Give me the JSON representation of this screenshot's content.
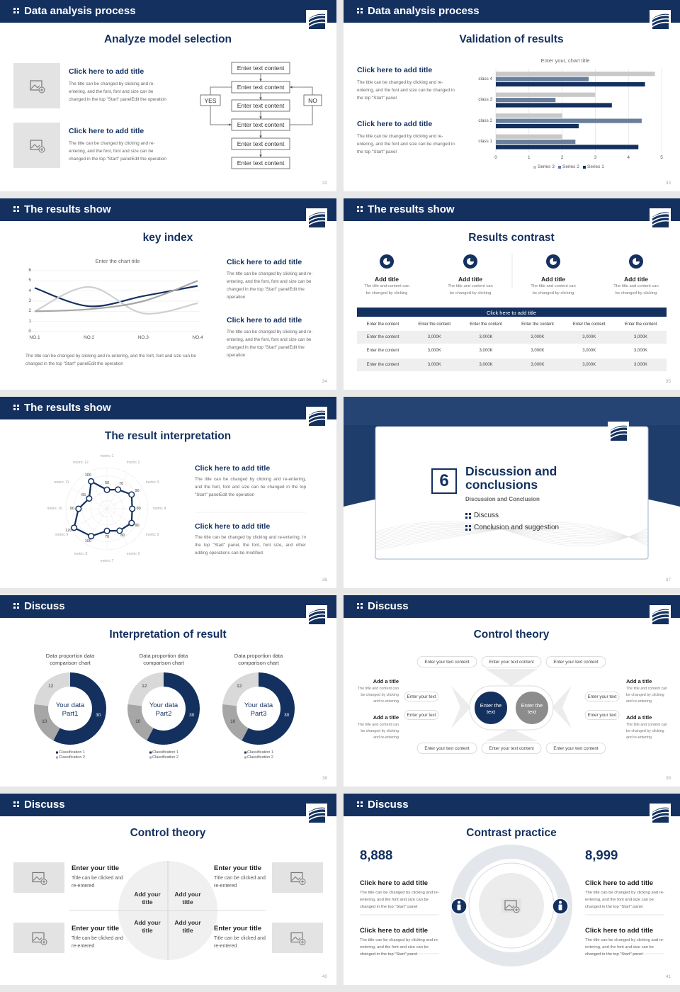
{
  "slides": [
    {
      "header": "Data analysis process",
      "title": "Analyze model selection",
      "page": "32",
      "items": [
        {
          "title": "Click here to add title",
          "text": "The title can be changed by clicking and re-entering, and the font, font and size can be changed in the top \"Start\" panelEdit the operation"
        },
        {
          "title": "Click here to add title",
          "text": "The title can be changed by clicking and re-entering, and the font, font and size can be changed in the top \"Start\" panelEdit the operation"
        }
      ],
      "flow": {
        "boxes": [
          "Enter text content",
          "Enter text content",
          "Enter text content",
          "Enter text content",
          "Enter text content",
          "Enter text content"
        ],
        "yes": "YES",
        "no": "NO"
      }
    },
    {
      "header": "Data analysis process",
      "title": "Validation of results",
      "page": "33",
      "items": [
        {
          "title": "Click here to add title",
          "text": "The title can be changed by clicking and re-entering, and the font and size can be changed in the top \"Start\" panel"
        },
        {
          "title": "Click here to add title",
          "text": "The title can be changed by clicking and re-entering, and the font and size can be changed in the top \"Start\" panel"
        }
      ],
      "chart_data": {
        "type": "bar",
        "title": "Enter your, chart title",
        "categories": [
          "class 1",
          "class 2",
          "class 3",
          "class 4"
        ],
        "series": [
          {
            "name": "Series 1",
            "color": "#13305f",
            "values": [
              4.3,
              2.5,
              3.5,
              4.5
            ]
          },
          {
            "name": "Series 2",
            "color": "#6a7f9c",
            "values": [
              2.4,
              4.4,
              1.8,
              2.8
            ]
          },
          {
            "name": "Series 3",
            "color": "#c8c8c8",
            "values": [
              2,
              2,
              3,
              4.8
            ]
          }
        ],
        "xlim": [
          0,
          5
        ],
        "xticks": [
          0,
          1,
          2,
          3,
          4,
          5
        ],
        "grid": true
      }
    },
    {
      "header": "The results show",
      "title": "key index",
      "page": "34",
      "chart_data": {
        "type": "line",
        "title": "Enter the chart title",
        "categories": [
          "NO.1",
          "NO.2",
          "NO.3",
          "NO.4"
        ],
        "series": [
          {
            "color": "#13305f",
            "values": [
              4.3,
              2.5,
              3.5,
              4.5
            ]
          },
          {
            "color": "#cfcfcf",
            "values": [
              2,
              4.4,
              1.8,
              2.8
            ]
          },
          {
            "color": "#a6a6a6",
            "values": [
              2,
              2.2,
              3,
              5
            ]
          }
        ],
        "ylim": [
          0,
          6
        ],
        "yticks": [
          0,
          1,
          2,
          3,
          4,
          5,
          6
        ],
        "grid": true
      },
      "caption": "The title can be changed by clicking and re-entering, and the font, font and size can be changed in the top \"Start\" panelEdit the operation",
      "items": [
        {
          "title": "Click here to add title",
          "text": "The title can be changed by clicking and re-entering, and the font, font and size can be changed in the top \"Start\" panelEdit the operation"
        },
        {
          "title": "Click here to add title",
          "text": "The title can be changed by clicking and re-entering, and the font, font and size can be changed in the top \"Start\" panelEdit the operation"
        }
      ]
    },
    {
      "header": "The results show",
      "title": "Results contrast",
      "page": "35",
      "items": [
        {
          "title": "Add title",
          "text": "The title and content can be changed by clicking"
        },
        {
          "title": "Add title",
          "text": "The title and content can be changed by clicking"
        },
        {
          "title": "Add title",
          "text": "The title and content can be changed by clicking"
        },
        {
          "title": "Add title",
          "text": "The title and content can be changed by clicking"
        }
      ],
      "table": {
        "title": "Click here to add title",
        "header": [
          "Enter the content",
          "Enter the content",
          "Enter the content",
          "Enter the content",
          "Enter the content",
          "Enter the content"
        ],
        "rows": [
          [
            "Enter the content",
            "3,000K",
            "3,000K",
            "3,000K",
            "3,000K",
            "3,000K"
          ],
          [
            "Enter the content",
            "3,000K",
            "3,000K",
            "3,000K",
            "3,000K",
            "3,000K"
          ],
          [
            "Enter the content",
            "3,000K",
            "3,000K",
            "3,000K",
            "3,000K",
            "3,000K"
          ]
        ]
      }
    },
    {
      "header": "The results show",
      "title": "The result interpretation",
      "page": "36",
      "chart_data": {
        "type": "radar",
        "categories": [
          "metric 1",
          "metric 2",
          "metric 3",
          "metric 4",
          "metric 5",
          "metric 6",
          "metric 7",
          "metric 8",
          "metric 9",
          "metric 10",
          "metric 11",
          "metric 12"
        ],
        "values": [
          60,
          70,
          90,
          80,
          90,
          80,
          70,
          100,
          120,
          90,
          65,
          100
        ],
        "rlim": [
          0,
          130
        ],
        "color": "#13305f"
      },
      "items": [
        {
          "title": "Click here to add title",
          "text": "The title can be changed by clicking and re-entering, and the font, font and size can be changed in the top \"Start\" panelEdit the operation"
        },
        {
          "title": "Click here to add title",
          "text": "The title can be changed by clicking and re-entering. In the top \"Start\" panel, the font, font size, and other editing operations can be modified"
        }
      ]
    },
    {
      "number": "6",
      "title": "Discussion and conclusions",
      "subtitle": "Discussion and Conclusion",
      "bullets": [
        "Discuss",
        "Conclusion and suggestion"
      ],
      "page": "37"
    },
    {
      "header": "Discuss",
      "title": "Interpretation of result",
      "page": "38",
      "charts": [
        {
          "type": "donut",
          "title": "Data proportion data comparison chart",
          "center": "Your data Part1",
          "categories": [
            "Classification 1",
            "Classification 2",
            null
          ],
          "values": [
            30,
            10,
            12
          ],
          "colors": [
            "#13305f",
            "#a6a6a6",
            "#d9d9d9"
          ]
        },
        {
          "type": "donut",
          "title": "Data proportion data comparison chart",
          "center": "Your data Part2",
          "categories": [
            "Classification 1",
            "Classification 2",
            null
          ],
          "values": [
            30,
            10,
            12
          ],
          "colors": [
            "#13305f",
            "#a6a6a6",
            "#d9d9d9"
          ]
        },
        {
          "type": "donut",
          "title": "Data proportion data comparison chart",
          "center": "Your data Part3",
          "categories": [
            "Classification 1",
            "Classification 2",
            null
          ],
          "values": [
            30,
            10,
            12
          ],
          "colors": [
            "#13305f",
            "#a6a6a6",
            "#d9d9d9"
          ]
        }
      ]
    },
    {
      "header": "Discuss",
      "title": "Control theory",
      "page": "39",
      "top": [
        "Enter your text content",
        "Enter your text content",
        "Enter your text content"
      ],
      "bottom": [
        "Enter your text content",
        "Enter your text content",
        "Enter your text content"
      ],
      "left": [
        "Enter your text",
        "Enter your text"
      ],
      "right": [
        "Enter your text",
        "Enter your text"
      ],
      "circles": [
        "Enter the text",
        "Enter the text"
      ],
      "side": [
        {
          "title": "Add a title",
          "text": "The title and content can be changed by clicking and re-entering"
        },
        {
          "title": "Add a title",
          "text": "The title and content can be changed by clicking and re-entering"
        },
        {
          "title": "Add a title",
          "text": "The title and content can be changed by clicking and re-entering"
        },
        {
          "title": "Add a title",
          "text": "The title and content can be changed by clicking and re-entering"
        }
      ]
    },
    {
      "header": "Discuss",
      "title": "Control theory",
      "page": "40",
      "items": [
        {
          "title": "Enter your title",
          "text": "Title can be clicked and re-entered"
        },
        {
          "title": "Enter your title",
          "text": "Title can be clicked and re-entered"
        },
        {
          "title": "Enter your title",
          "text": "Title can be clicked and re-entered"
        },
        {
          "title": "Enter your title",
          "text": "Title can be clicked and re-entered"
        }
      ],
      "quadrants": [
        "Add your title",
        "Add your title",
        "Add your title",
        "Add your title"
      ]
    },
    {
      "header": "Discuss",
      "title": "Contrast practice",
      "page": "41",
      "stats": [
        "8,888",
        "8,999"
      ],
      "items": [
        {
          "title": "Click here to add title",
          "text": "The title can be changed by clicking and re-entering, and the font and size can be changed in the top \"Start\" panel"
        },
        {
          "title": "Click here to add title",
          "text": "The title can be changed by clicking and re-entering, and the font and size can be changed in the top \"Start\" panel"
        },
        {
          "title": "Click here to add title",
          "text": "The title can be changed by clicking and re-entering, and the font and size can be changed in the top \"Start\" panel"
        },
        {
          "title": "Click here to add title",
          "text": "The title can be changed by clicking and re-entering, and the font and size can be changed in the top \"Start\" panel"
        }
      ]
    }
  ]
}
